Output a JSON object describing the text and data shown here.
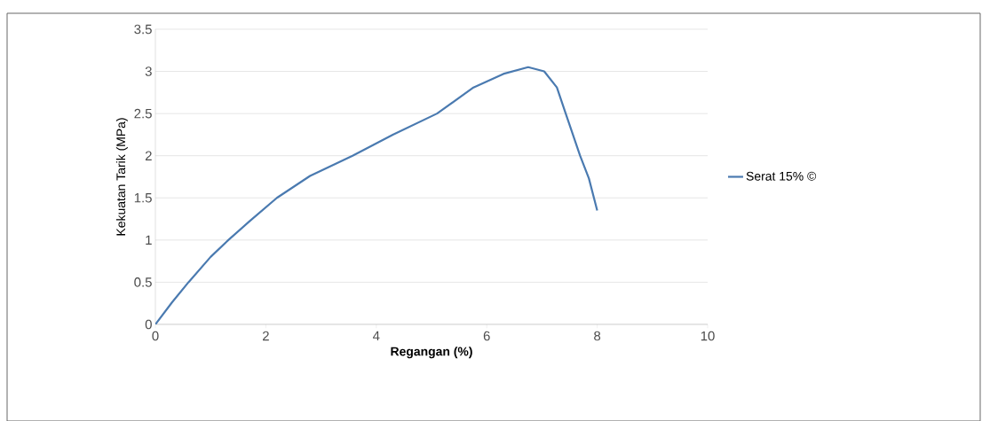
{
  "chart_data": {
    "type": "line",
    "xlabel": "Regangan (%)",
    "ylabel": "Kekuatan Tarik (MPa)",
    "x": [
      0,
      0.3,
      0.6,
      1.0,
      1.32,
      1.7,
      2.2,
      2.8,
      3.57,
      4.3,
      5.1,
      5.76,
      6.3,
      6.75,
      7.04,
      7.27,
      7.43,
      7.69,
      7.85,
      8.0
    ],
    "series": [
      {
        "name": "Serat 15% ©",
        "color": "#4a7ab0",
        "values": [
          0,
          0.26,
          0.5,
          0.8,
          1.0,
          1.22,
          1.5,
          1.76,
          2.0,
          2.25,
          2.5,
          2.81,
          2.97,
          3.05,
          3.0,
          2.81,
          2.5,
          2.0,
          1.73,
          1.35
        ]
      }
    ],
    "xlim": [
      0,
      10
    ],
    "ylim": [
      0,
      3.5
    ],
    "xticks": [
      0,
      2,
      4,
      6,
      8,
      10
    ],
    "yticks": [
      0,
      0.5,
      1,
      1.5,
      2,
      2.5,
      3,
      3.5
    ],
    "grid": "y",
    "legend": "right",
    "marker": "none",
    "line_style": "solid"
  }
}
